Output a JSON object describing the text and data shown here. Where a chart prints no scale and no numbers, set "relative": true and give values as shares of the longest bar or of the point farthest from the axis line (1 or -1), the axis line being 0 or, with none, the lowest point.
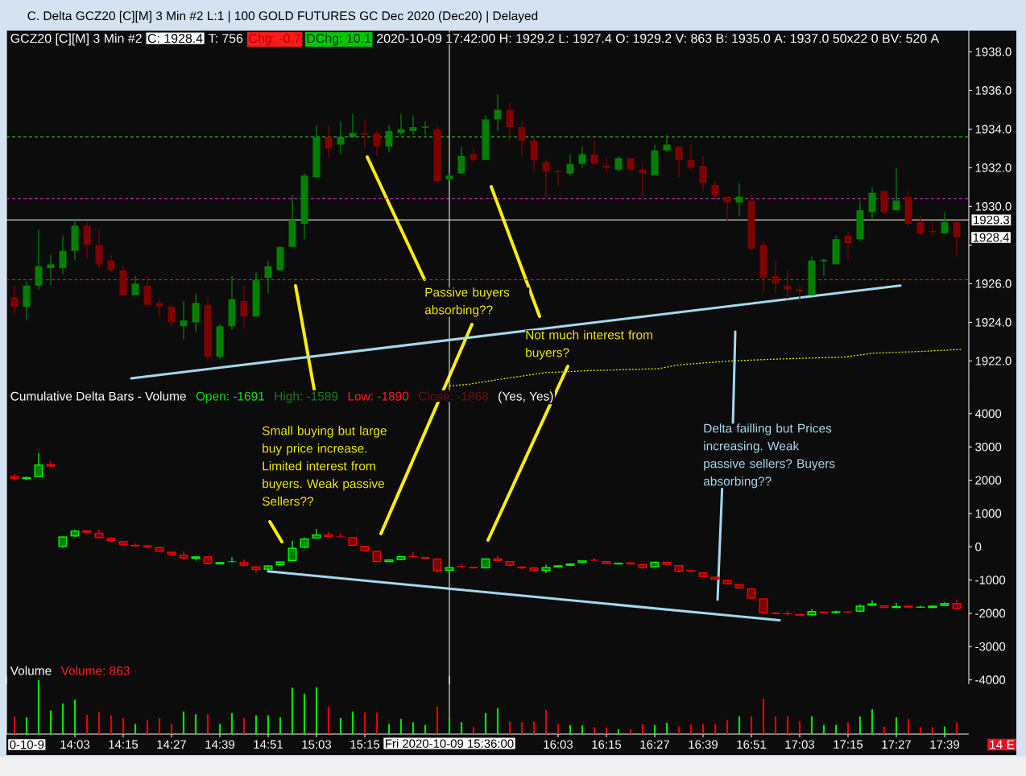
{
  "chart_data": [
    {
      "type": "candlestick",
      "title": "C. Delta GCZ20 [C][M] 3 Min #2 L:1 | 100 GOLD FUTURES GC Dec 2020 (Dec20) | Delayed",
      "annotations": [
        "GCZ20 [C][M] 3 Min #2",
        "C: 1928.4",
        "T: 756",
        "Chg: -0.7",
        "DChg: 10.1",
        "2020-10-09 17:42:00 H: 1929.2 L: 1927.4 O: 1929.2 V: 863 B: 1935.0 A: 1937.0 50x22 0 BV: 520 A",
        "Passive buyers absorbing??",
        "Not much interest from buyers?",
        "1928.4"
      ],
      "x": [
        "2020-10-09T13:48",
        "2020-10-09T13:51",
        "2020-10-09T13:54",
        "2020-10-09T13:57",
        "2020-10-09T14:00",
        "2020-10-09T14:03",
        "2020-10-09T14:06",
        "2020-10-09T14:09",
        "2020-10-09T14:12",
        "2020-10-09T14:15",
        "2020-10-09T14:18",
        "2020-10-09T14:21",
        "2020-10-09T14:24",
        "2020-10-09T14:27",
        "2020-10-09T14:30",
        "2020-10-09T14:33",
        "2020-10-09T14:36",
        "2020-10-09T14:39",
        "2020-10-09T14:42",
        "2020-10-09T14:45",
        "2020-10-09T14:48",
        "2020-10-09T14:51",
        "2020-10-09T14:54",
        "2020-10-09T14:57",
        "2020-10-09T15:00",
        "2020-10-09T15:03",
        "2020-10-09T15:06",
        "2020-10-09T15:09",
        "2020-10-09T15:12",
        "2020-10-09T15:15",
        "2020-10-09T15:18",
        "2020-10-09T15:21",
        "2020-10-09T15:24",
        "2020-10-09T15:27",
        "2020-10-09T15:30",
        "2020-10-09T15:33",
        "2020-10-09T15:36",
        "2020-10-09T15:39",
        "2020-10-09T15:42",
        "2020-10-09T15:45",
        "2020-10-09T15:48",
        "2020-10-09T15:51",
        "2020-10-09T15:54",
        "2020-10-09T15:57",
        "2020-10-09T16:00",
        "2020-10-09T16:03",
        "2020-10-09T16:06",
        "2020-10-09T16:09",
        "2020-10-09T16:12",
        "2020-10-09T16:15",
        "2020-10-09T16:18",
        "2020-10-09T16:21",
        "2020-10-09T16:24",
        "2020-10-09T16:27",
        "2020-10-09T16:30",
        "2020-10-09T16:33",
        "2020-10-09T16:36",
        "2020-10-09T16:39",
        "2020-10-09T16:42",
        "2020-10-09T16:45",
        "2020-10-09T16:48",
        "2020-10-09T16:51",
        "2020-10-09T16:54",
        "2020-10-09T16:57",
        "2020-10-09T17:00",
        "2020-10-09T17:03",
        "2020-10-09T17:06",
        "2020-10-09T17:09",
        "2020-10-09T17:12",
        "2020-10-09T17:15",
        "2020-10-09T17:18",
        "2020-10-09T17:21",
        "2020-10-09T17:24",
        "2020-10-09T17:27",
        "2020-10-09T17:30",
        "2020-10-09T17:33",
        "2020-10-09T17:36",
        "2020-10-09T17:39",
        "2020-10-09T17:42"
      ],
      "ohlc": [
        [
          1925.3,
          1925.9,
          1924.4,
          1924.8
        ],
        [
          1924.8,
          1926.1,
          1924.1,
          1925.9
        ],
        [
          1925.9,
          1928.8,
          1925.7,
          1926.9
        ],
        [
          1926.8,
          1927.5,
          1925.9,
          1927.0
        ],
        [
          1926.8,
          1928.5,
          1926.5,
          1927.7
        ],
        [
          1927.7,
          1929.3,
          1927.2,
          1929.0
        ],
        [
          1929.0,
          1929.2,
          1927.3,
          1928.0
        ],
        [
          1928.0,
          1928.8,
          1926.8,
          1927.0
        ],
        [
          1927.2,
          1927.5,
          1926.6,
          1926.7
        ],
        [
          1926.7,
          1926.9,
          1925.4,
          1925.4
        ],
        [
          1925.4,
          1926.4,
          1925.4,
          1926.0
        ],
        [
          1925.9,
          1926.4,
          1924.9,
          1924.9
        ],
        [
          1925.0,
          1925.2,
          1924.3,
          1924.8
        ],
        [
          1924.8,
          1924.9,
          1923.8,
          1924.0
        ],
        [
          1923.8,
          1925.1,
          1923.1,
          1924.1
        ],
        [
          1924.0,
          1925.5,
          1923.5,
          1925.0
        ],
        [
          1924.9,
          1925.3,
          1922.0,
          1922.2
        ],
        [
          1922.2,
          1923.9,
          1922.1,
          1923.8
        ],
        [
          1923.8,
          1926.4,
          1923.6,
          1925.2
        ],
        [
          1925.1,
          1925.9,
          1923.7,
          1924.3
        ],
        [
          1924.3,
          1926.6,
          1924.3,
          1926.2
        ],
        [
          1926.3,
          1927.2,
          1925.5,
          1926.9
        ],
        [
          1926.7,
          1927.9,
          1926.7,
          1927.9
        ],
        [
          1927.9,
          1930.6,
          1927.9,
          1929.3
        ],
        [
          1929.1,
          1931.7,
          1928.3,
          1931.6
        ],
        [
          1931.5,
          1934.2,
          1931.5,
          1933.6
        ],
        [
          1933.6,
          1934.2,
          1932.5,
          1933.0
        ],
        [
          1933.2,
          1934.4,
          1932.7,
          1933.6
        ],
        [
          1933.6,
          1934.8,
          1933.6,
          1933.8
        ],
        [
          1933.8,
          1934.5,
          1933.0,
          1933.7
        ],
        [
          1933.8,
          1933.9,
          1932.6,
          1933.1
        ],
        [
          1933.1,
          1934.2,
          1932.8,
          1933.9
        ],
        [
          1933.8,
          1934.8,
          1933.7,
          1934.0
        ],
        [
          1933.9,
          1934.7,
          1933.7,
          1934.1
        ],
        [
          1934.1,
          1934.4,
          1933.7,
          1934.1
        ],
        [
          1934.0,
          1934.2,
          1931.2,
          1931.3
        ],
        [
          1931.4,
          1931.7,
          1931.3,
          1931.6
        ],
        [
          1931.7,
          1933.1,
          1931.7,
          1932.6
        ],
        [
          1932.7,
          1933.1,
          1932.3,
          1932.4
        ],
        [
          1932.4,
          1934.7,
          1932.4,
          1934.5
        ],
        [
          1934.5,
          1935.8,
          1933.9,
          1935.0
        ],
        [
          1935.0,
          1935.4,
          1933.4,
          1934.1
        ],
        [
          1934.1,
          1934.4,
          1932.6,
          1933.4
        ],
        [
          1933.4,
          1933.6,
          1931.8,
          1932.4
        ],
        [
          1932.3,
          1932.4,
          1930.5,
          1931.8
        ],
        [
          1931.8,
          1931.9,
          1931.1,
          1931.8
        ],
        [
          1931.7,
          1932.7,
          1931.6,
          1932.2
        ],
        [
          1932.2,
          1933.1,
          1932.0,
          1932.7
        ],
        [
          1932.7,
          1933.4,
          1932.2,
          1932.2
        ],
        [
          1932.1,
          1932.5,
          1931.7,
          1932.0
        ],
        [
          1931.9,
          1932.6,
          1931.8,
          1932.5
        ],
        [
          1932.5,
          1932.5,
          1931.9,
          1931.9
        ],
        [
          1931.9,
          1932.3,
          1930.5,
          1931.7
        ],
        [
          1931.6,
          1933.2,
          1931.6,
          1932.9
        ],
        [
          1932.9,
          1933.7,
          1932.8,
          1933.2
        ],
        [
          1933.1,
          1933.1,
          1931.5,
          1932.4
        ],
        [
          1932.4,
          1933.2,
          1931.9,
          1932.0
        ],
        [
          1932.1,
          1932.6,
          1930.8,
          1931.2
        ],
        [
          1931.1,
          1931.3,
          1930.3,
          1930.6
        ],
        [
          1930.5,
          1930.5,
          1929.2,
          1930.2
        ],
        [
          1930.2,
          1931.2,
          1929.5,
          1930.5
        ],
        [
          1930.3,
          1930.6,
          1927.7,
          1927.8
        ],
        [
          1928.0,
          1928.2,
          1925.5,
          1926.3
        ],
        [
          1926.4,
          1927.2,
          1925.5,
          1926.0
        ],
        [
          1925.9,
          1926.7,
          1925.2,
          1925.7
        ],
        [
          1925.7,
          1925.9,
          1925.0,
          1925.6
        ],
        [
          1925.4,
          1927.4,
          1925.4,
          1927.2
        ],
        [
          1927.2,
          1927.3,
          1926.4,
          1927.2
        ],
        [
          1927.0,
          1928.5,
          1927.0,
          1928.3
        ],
        [
          1928.5,
          1928.7,
          1927.2,
          1928.1
        ],
        [
          1928.3,
          1930.3,
          1928.2,
          1929.8
        ],
        [
          1929.7,
          1931.0,
          1929.3,
          1930.7
        ],
        [
          1930.8,
          1930.8,
          1929.6,
          1929.7
        ],
        [
          1929.8,
          1932.0,
          1929.8,
          1930.3
        ],
        [
          1930.5,
          1930.8,
          1929.0,
          1929.1
        ],
        [
          1929.2,
          1929.5,
          1928.5,
          1928.6
        ],
        [
          1928.7,
          1929.2,
          1928.5,
          1928.7
        ],
        [
          1928.6,
          1929.7,
          1928.6,
          1929.2
        ],
        [
          1929.2,
          1929.2,
          1927.4,
          1928.4
        ]
      ],
      "colors": [
        "#800000",
        "#008000",
        "#008000",
        "#008000",
        "#008000",
        "#008000",
        "#800000",
        "#800000",
        "#800000",
        "#800000",
        "#008000",
        "#800000",
        "#800000",
        "#800000",
        "#008000",
        "#008000",
        "#800000",
        "#008000",
        "#008000",
        "#800000",
        "#008000",
        "#008000",
        "#008000",
        "#008000",
        "#008000",
        "#008000",
        "#800000",
        "#008000",
        "#008000",
        "#800000",
        "#800000",
        "#008000",
        "#008000",
        "#008000",
        "#008000",
        "#800000",
        "#008000",
        "#008000",
        "#800000",
        "#008000",
        "#008000",
        "#800000",
        "#800000",
        "#800000",
        "#800000",
        "#800000",
        "#008000",
        "#008000",
        "#800000",
        "#800000",
        "#008000",
        "#800000",
        "#800000",
        "#008000",
        "#008000",
        "#800000",
        "#800000",
        "#800000",
        "#800000",
        "#800000",
        "#008000",
        "#800000",
        "#800000",
        "#800000",
        "#800000",
        "#800000",
        "#008000",
        "#008000",
        "#008000",
        "#800000",
        "#008000",
        "#008000",
        "#800000",
        "#008000",
        "#800000",
        "#800000",
        "#800000",
        "#008000",
        "#800000"
      ],
      "series": [
        {
          "type": "line",
          "x": [
            "2020-10-09T15:36",
            "2020-10-09T15:41",
            "2020-10-09T15:47",
            "2020-10-09T16:00",
            "2020-10-09T16:11",
            "2020-10-09T16:28",
            "2020-10-09T16:33",
            "2020-10-09T16:46",
            "2020-10-09T16:58",
            "2020-10-09T17:14",
            "2020-10-09T17:21",
            "2020-10-09T17:34",
            "2020-10-09T17:43"
          ],
          "values": [
            1920.7,
            1920.8,
            1921.0,
            1921.4,
            1921.5,
            1921.6,
            1921.8,
            1922.0,
            1922.1,
            1922.2,
            1922.4,
            1922.5,
            1922.6
          ],
          "color": "#e6e600",
          "line_style": "dotted"
        },
        {
          "type": "line",
          "x": [
            "2020-10-09T14:17",
            "2020-10-09T17:28"
          ],
          "values": [
            1921.1,
            1925.9
          ],
          "color": "#a3d9ee"
        }
      ],
      "ref_lines": [
        {
          "axis": "y",
          "value": 1933.6,
          "color": "#33cc33",
          "line_style": "dashed"
        },
        {
          "axis": "y",
          "value": 1930.4,
          "color": "#cc33cc",
          "line_style": "dashed"
        },
        {
          "axis": "y",
          "value": 1926.2,
          "color": "#e02020",
          "line_style": "dashed"
        },
        {
          "axis": "y",
          "value": 1929.3,
          "label": "1929.3",
          "color": "#ffffff",
          "line_style": "solid"
        },
        {
          "axis": "x",
          "value": "2020-10-09T15:36",
          "color": "#ffffff",
          "line_style": "solid"
        }
      ],
      "xlim": [
        "2020-10-09T13:46",
        "2020-10-09T17:45"
      ],
      "ylim": [
        1920.6,
        1939.1
      ],
      "yticks": [
        {
          "value": 1922,
          "label": "1922.0"
        },
        {
          "value": 1924,
          "label": "1924.0"
        },
        {
          "value": 1926,
          "label": "1926.0"
        },
        {
          "value": 1928,
          "label": null
        },
        {
          "value": 1930,
          "label": "1930.0"
        },
        {
          "value": 1932,
          "label": "1932.0"
        },
        {
          "value": 1934,
          "label": "1934.0"
        },
        {
          "value": 1936,
          "label": "1936.0"
        },
        {
          "value": 1938,
          "label": "1938.0"
        }
      ],
      "tick_labels": "y"
    },
    {
      "type": "candlestick",
      "title": "Cumulative Delta Bars - Volume",
      "annotations": [
        "Open: -1691",
        "High: -1589",
        "Low: -1890",
        "Close: -1868",
        "(Yes, Yes)",
        "Small buying but large buy price increase. Limited interest from buyers. Weak passive Sellers??",
        "Delta failling but Prices increasing. Weak passive sellers? Buyers absorbing??"
      ],
      "x": [
        "2020-10-09T13:48",
        "2020-10-09T13:51",
        "2020-10-09T13:54",
        "2020-10-09T13:57",
        "2020-10-09T14:00",
        "2020-10-09T14:03",
        "2020-10-09T14:06",
        "2020-10-09T14:09",
        "2020-10-09T14:12",
        "2020-10-09T14:15",
        "2020-10-09T14:18",
        "2020-10-09T14:21",
        "2020-10-09T14:24",
        "2020-10-09T14:27",
        "2020-10-09T14:30",
        "2020-10-09T14:33",
        "2020-10-09T14:36",
        "2020-10-09T14:39",
        "2020-10-09T14:42",
        "2020-10-09T14:45",
        "2020-10-09T14:48",
        "2020-10-09T14:51",
        "2020-10-09T14:54",
        "2020-10-09T14:57",
        "2020-10-09T15:00",
        "2020-10-09T15:03",
        "2020-10-09T15:06",
        "2020-10-09T15:09",
        "2020-10-09T15:12",
        "2020-10-09T15:15",
        "2020-10-09T15:18",
        "2020-10-09T15:21",
        "2020-10-09T15:24",
        "2020-10-09T15:27",
        "2020-10-09T15:30",
        "2020-10-09T15:33",
        "2020-10-09T15:36",
        "2020-10-09T15:39",
        "2020-10-09T15:42",
        "2020-10-09T15:45",
        "2020-10-09T15:48",
        "2020-10-09T15:51",
        "2020-10-09T15:54",
        "2020-10-09T15:57",
        "2020-10-09T16:00",
        "2020-10-09T16:03",
        "2020-10-09T16:06",
        "2020-10-09T16:09",
        "2020-10-09T16:12",
        "2020-10-09T16:15",
        "2020-10-09T16:18",
        "2020-10-09T16:21",
        "2020-10-09T16:24",
        "2020-10-09T16:27",
        "2020-10-09T16:30",
        "2020-10-09T16:33",
        "2020-10-09T16:36",
        "2020-10-09T16:39",
        "2020-10-09T16:42",
        "2020-10-09T16:45",
        "2020-10-09T16:48",
        "2020-10-09T16:51",
        "2020-10-09T16:54",
        "2020-10-09T16:57",
        "2020-10-09T17:00",
        "2020-10-09T17:03",
        "2020-10-09T17:06",
        "2020-10-09T17:09",
        "2020-10-09T17:12",
        "2020-10-09T17:15",
        "2020-10-09T17:18",
        "2020-10-09T17:21",
        "2020-10-09T17:24",
        "2020-10-09T17:27",
        "2020-10-09T17:30",
        "2020-10-09T17:33",
        "2020-10-09T17:36",
        "2020-10-09T17:39",
        "2020-10-09T17:42"
      ],
      "ohlc": [
        [
          2120,
          2180,
          2010,
          2040
        ],
        [
          2030,
          2110,
          2010,
          2090
        ],
        [
          2090,
          2820,
          2090,
          2470
        ],
        [
          2480,
          2560,
          2380,
          2410
        ],
        [
          -10,
          310,
          -30,
          310
        ],
        [
          310,
          510,
          290,
          490
        ],
        [
          490,
          490,
          420,
          420
        ],
        [
          420,
          520,
          240,
          260
        ],
        [
          270,
          290,
          150,
          170
        ],
        [
          170,
          170,
          50,
          50
        ],
        [
          60,
          100,
          0,
          10
        ],
        [
          40,
          60,
          -30,
          -10
        ],
        [
          -10,
          -10,
          -150,
          -150
        ],
        [
          -150,
          -150,
          -240,
          -240
        ],
        [
          -240,
          -140,
          -380,
          -350
        ],
        [
          -360,
          -290,
          -410,
          -290
        ],
        [
          -290,
          -290,
          -520,
          -520
        ],
        [
          -530,
          -460,
          -530,
          -460
        ],
        [
          -460,
          -310,
          -460,
          -440
        ],
        [
          -460,
          -390,
          -590,
          -570
        ],
        [
          -590,
          -570,
          -780,
          -700
        ],
        [
          -690,
          -560,
          -720,
          -560
        ],
        [
          -560,
          -440,
          -560,
          -440
        ],
        [
          -430,
          180,
          -430,
          -30
        ],
        [
          -30,
          280,
          -30,
          250
        ],
        [
          250,
          540,
          250,
          370
        ],
        [
          370,
          450,
          290,
          290
        ],
        [
          310,
          400,
          290,
          290
        ],
        [
          290,
          290,
          30,
          30
        ],
        [
          30,
          30,
          -120,
          -120
        ],
        [
          -120,
          -120,
          -460,
          -460
        ],
        [
          -460,
          -380,
          -460,
          -380
        ],
        [
          -400,
          -280,
          -400,
          -280
        ],
        [
          -280,
          -170,
          -310,
          -310
        ],
        [
          -310,
          -310,
          -360,
          -360
        ],
        [
          -350,
          -350,
          -780,
          -740
        ],
        [
          -720,
          -610,
          -720,
          -610
        ],
        [
          -580,
          -530,
          -610,
          -610
        ],
        [
          -600,
          -600,
          -650,
          -650
        ],
        [
          -650,
          -350,
          -650,
          -350
        ],
        [
          -350,
          -270,
          -440,
          -430
        ],
        [
          -430,
          -430,
          -570,
          -570
        ],
        [
          -600,
          -570,
          -680,
          -650
        ],
        [
          -620,
          -620,
          -730,
          -720
        ],
        [
          -730,
          -540,
          -800,
          -610
        ],
        [
          -620,
          -560,
          -620,
          -560
        ],
        [
          -570,
          -500,
          -570,
          -500
        ],
        [
          -490,
          -410,
          -490,
          -410
        ],
        [
          -390,
          -340,
          -420,
          -420
        ],
        [
          -430,
          -430,
          -520,
          -520
        ],
        [
          -530,
          -480,
          -530,
          -480
        ],
        [
          -470,
          -470,
          -530,
          -530
        ],
        [
          -520,
          -520,
          -660,
          -640
        ],
        [
          -620,
          -450,
          -620,
          -450
        ],
        [
          -450,
          -450,
          -540,
          -540
        ],
        [
          -550,
          -550,
          -770,
          -750
        ],
        [
          -700,
          -700,
          -740,
          -740
        ],
        [
          -770,
          -770,
          -910,
          -910
        ],
        [
          -900,
          -900,
          -990,
          -990
        ],
        [
          -1000,
          -1000,
          -1130,
          -1130
        ],
        [
          -1120,
          -1120,
          -1250,
          -1250
        ],
        [
          -1250,
          -1250,
          -1560,
          -1560
        ],
        [
          -1550,
          -1550,
          -2020,
          -2000
        ],
        [
          -1980,
          -1960,
          -2020,
          -2020
        ],
        [
          -2000,
          -1920,
          -2060,
          -2030
        ],
        [
          -2020,
          -2020,
          -2080,
          -2070
        ],
        [
          -2060,
          -1870,
          -2060,
          -1930
        ],
        [
          -1950,
          -1950,
          -2000,
          -2000
        ],
        [
          -1990,
          -1920,
          -2010,
          -1940
        ],
        [
          -1940,
          -1940,
          -2000,
          -1970
        ],
        [
          -1950,
          -1730,
          -1970,
          -1770
        ],
        [
          -1770,
          -1610,
          -1770,
          -1700
        ],
        [
          -1760,
          -1760,
          -1840,
          -1840
        ],
        [
          -1840,
          -1690,
          -1840,
          -1780
        ],
        [
          -1770,
          -1770,
          -1830,
          -1830
        ],
        [
          -1830,
          -1770,
          -1830,
          -1800
        ],
        [
          -1840,
          -1770,
          -1840,
          -1770
        ],
        [
          -1780,
          -1670,
          -1780,
          -1690
        ],
        [
          -1691,
          -1589,
          -1890,
          -1868
        ]
      ],
      "colors": [
        "#ff0000",
        "#00ff00",
        "#00ff00",
        "#ff0000",
        "#00ff00",
        "#00ff00",
        "#ff0000",
        "#ff0000",
        "#ff0000",
        "#ff0000",
        "#ff0000",
        "#ff0000",
        "#ff0000",
        "#ff0000",
        "#ff0000",
        "#00ff00",
        "#ff0000",
        "#00ff00",
        "#00ff00",
        "#ff0000",
        "#ff0000",
        "#00ff00",
        "#00ff00",
        "#00ff00",
        "#00ff00",
        "#00ff00",
        "#ff0000",
        "#ff0000",
        "#ff0000",
        "#ff0000",
        "#ff0000",
        "#00ff00",
        "#00ff00",
        "#ff0000",
        "#ff0000",
        "#ff0000",
        "#00ff00",
        "#ff0000",
        "#ff0000",
        "#00ff00",
        "#ff0000",
        "#ff0000",
        "#ff0000",
        "#ff0000",
        "#00ff00",
        "#00ff00",
        "#00ff00",
        "#00ff00",
        "#ff0000",
        "#ff0000",
        "#00ff00",
        "#ff0000",
        "#ff0000",
        "#00ff00",
        "#ff0000",
        "#ff0000",
        "#ff0000",
        "#ff0000",
        "#ff0000",
        "#ff0000",
        "#ff0000",
        "#ff0000",
        "#ff0000",
        "#ff0000",
        "#ff0000",
        "#ff0000",
        "#00ff00",
        "#ff0000",
        "#00ff00",
        "#ff0000",
        "#00ff00",
        "#00ff00",
        "#ff0000",
        "#00ff00",
        "#ff0000",
        "#00ff00",
        "#00ff00",
        "#00ff00",
        "#ff0000"
      ],
      "series": [
        {
          "type": "line",
          "x": [
            "2020-10-09T14:51",
            "2020-10-09T16:58"
          ],
          "values": [
            -740,
            -2210
          ],
          "color": "#a3d9ee"
        }
      ],
      "ref_lines": [
        {
          "axis": "x",
          "value": "2020-10-09T15:36",
          "color": "#ffffff",
          "line_style": "solid"
        }
      ],
      "xlim": [
        "2020-10-09T13:46",
        "2020-10-09T17:45"
      ],
      "ylim": [
        -4130,
        4770
      ],
      "yticks": [
        -4000,
        -3000,
        -2000,
        -1000,
        0,
        1000,
        2000,
        3000,
        4000
      ],
      "tick_labels": "y"
    },
    {
      "type": "bar",
      "title": "Volume",
      "annotations": [
        "Volume: 863",
        "14 E",
        "0-10-9"
      ],
      "relative": true,
      "x": [
        "2020-10-09T13:48",
        "2020-10-09T13:51",
        "2020-10-09T13:54",
        "2020-10-09T13:57",
        "2020-10-09T14:00",
        "2020-10-09T14:03",
        "2020-10-09T14:06",
        "2020-10-09T14:09",
        "2020-10-09T14:12",
        "2020-10-09T14:15",
        "2020-10-09T14:18",
        "2020-10-09T14:21",
        "2020-10-09T14:24",
        "2020-10-09T14:27",
        "2020-10-09T14:30",
        "2020-10-09T14:33",
        "2020-10-09T14:36",
        "2020-10-09T14:39",
        "2020-10-09T14:42",
        "2020-10-09T14:45",
        "2020-10-09T14:48",
        "2020-10-09T14:51",
        "2020-10-09T14:54",
        "2020-10-09T14:57",
        "2020-10-09T15:00",
        "2020-10-09T15:03",
        "2020-10-09T15:06",
        "2020-10-09T15:09",
        "2020-10-09T15:12",
        "2020-10-09T15:15",
        "2020-10-09T15:18",
        "2020-10-09T15:21",
        "2020-10-09T15:24",
        "2020-10-09T15:27",
        "2020-10-09T15:30",
        "2020-10-09T15:33",
        "2020-10-09T15:36",
        "2020-10-09T15:39",
        "2020-10-09T15:42",
        "2020-10-09T15:45",
        "2020-10-09T15:48",
        "2020-10-09T15:51",
        "2020-10-09T15:54",
        "2020-10-09T15:57",
        "2020-10-09T16:00",
        "2020-10-09T16:03",
        "2020-10-09T16:06",
        "2020-10-09T16:09",
        "2020-10-09T16:12",
        "2020-10-09T16:15",
        "2020-10-09T16:18",
        "2020-10-09T16:21",
        "2020-10-09T16:24",
        "2020-10-09T16:27",
        "2020-10-09T16:30",
        "2020-10-09T16:33",
        "2020-10-09T16:36",
        "2020-10-09T16:39",
        "2020-10-09T16:42",
        "2020-10-09T16:45",
        "2020-10-09T16:48",
        "2020-10-09T16:51",
        "2020-10-09T16:54",
        "2020-10-09T16:57",
        "2020-10-09T17:00",
        "2020-10-09T17:03",
        "2020-10-09T17:06",
        "2020-10-09T17:09",
        "2020-10-09T17:12",
        "2020-10-09T17:15",
        "2020-10-09T17:18",
        "2020-10-09T17:21",
        "2020-10-09T17:24",
        "2020-10-09T17:27",
        "2020-10-09T17:30",
        "2020-10-09T17:33",
        "2020-10-09T17:36",
        "2020-10-09T17:39",
        "2020-10-09T17:42"
      ],
      "values": [
        0.33,
        0.31,
        1,
        0.44,
        0.57,
        0.64,
        0.36,
        0.41,
        0.35,
        0.3,
        0.19,
        0.26,
        0.3,
        0.19,
        0.42,
        0.37,
        0.37,
        0.19,
        0.39,
        0.3,
        0.35,
        0.35,
        0.31,
        0.86,
        0.75,
        0.87,
        0.51,
        0.3,
        0.42,
        0.4,
        0.4,
        0.19,
        0.28,
        0.22,
        0.17,
        0.51,
        0.28,
        0.22,
        0.13,
        0.39,
        0.48,
        0.23,
        0.22,
        0.23,
        0.45,
        0.19,
        0.17,
        0.16,
        0.13,
        0.12,
        0.09,
        0.09,
        0.19,
        0.17,
        0.21,
        0.14,
        0.18,
        0.19,
        0.19,
        0.26,
        0.33,
        0.33,
        0.66,
        0.33,
        0.33,
        0.24,
        0.33,
        0.17,
        0.17,
        0.22,
        0.33,
        0.46,
        0.14,
        0.31,
        0.28,
        0.13,
        0.13,
        0.14,
        0.22
      ],
      "colors": [
        "#e60000",
        "#00e600",
        "#00e600",
        "#00e600",
        "#00e600",
        "#00e600",
        "#e60000",
        "#e60000",
        "#e60000",
        "#e60000",
        "#00e600",
        "#e60000",
        "#e60000",
        "#e60000",
        "#00e600",
        "#00e600",
        "#e60000",
        "#00e600",
        "#00e600",
        "#e60000",
        "#00e600",
        "#00e600",
        "#00e600",
        "#00e600",
        "#00e600",
        "#00e600",
        "#e60000",
        "#00e600",
        "#00e600",
        "#e60000",
        "#e60000",
        "#00e600",
        "#00e600",
        "#00e600",
        "#00e600",
        "#e60000",
        "#00e600",
        "#00e600",
        "#e60000",
        "#00e600",
        "#00e600",
        "#e60000",
        "#e60000",
        "#e60000",
        "#e60000",
        "#e60000",
        "#00e600",
        "#00e600",
        "#e60000",
        "#e60000",
        "#00e600",
        "#e60000",
        "#e60000",
        "#00e600",
        "#00e600",
        "#e60000",
        "#e60000",
        "#e60000",
        "#e60000",
        "#e60000",
        "#00e600",
        "#e60000",
        "#e60000",
        "#e60000",
        "#e60000",
        "#e60000",
        "#00e600",
        "#00e600",
        "#00e600",
        "#e60000",
        "#00e600",
        "#00e600",
        "#e60000",
        "#00e600",
        "#e60000",
        "#e60000",
        "#e60000",
        "#00e600",
        "#e60000"
      ],
      "ref_lines": [
        {
          "axis": "x",
          "value": "2020-10-09T15:36",
          "label": "Fri 2020-10-09 15:36:00",
          "color": "#ffffff",
          "line_style": "solid"
        }
      ],
      "xlim": [
        "2020-10-09T13:46",
        "2020-10-09T17:45"
      ],
      "xticks": [
        {
          "value": "2020-10-09T14:03",
          "label": "14:03"
        },
        {
          "value": "2020-10-09T14:15",
          "label": "14:15"
        },
        {
          "value": "2020-10-09T14:27",
          "label": "14:27"
        },
        {
          "value": "2020-10-09T14:39",
          "label": "14:39"
        },
        {
          "value": "2020-10-09T14:51",
          "label": "14:51"
        },
        {
          "value": "2020-10-09T15:03",
          "label": "15:03"
        },
        {
          "value": "2020-10-09T15:15",
          "label": "15:15"
        },
        {
          "value": "2020-10-09T16:03",
          "label": "16:03"
        },
        {
          "value": "2020-10-09T16:15",
          "label": "16:15"
        },
        {
          "value": "2020-10-09T16:27",
          "label": "16:27"
        },
        {
          "value": "2020-10-09T16:39",
          "label": "16:39"
        },
        {
          "value": "2020-10-09T16:51",
          "label": "16:51"
        },
        {
          "value": "2020-10-09T17:03",
          "label": "17:03"
        },
        {
          "value": "2020-10-09T17:15",
          "label": "17:15"
        },
        {
          "value": "2020-10-09T17:27",
          "label": "17:27"
        },
        {
          "value": "2020-10-09T17:39",
          "label": "17:39"
        }
      ],
      "tick_labels": "x"
    }
  ]
}
